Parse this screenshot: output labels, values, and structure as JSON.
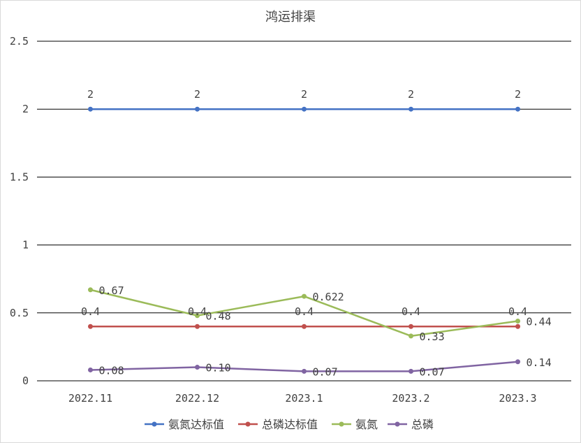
{
  "chart_data": {
    "type": "line",
    "title": "鸿运排渠",
    "categories": [
      "2022.11",
      "2022.12",
      "2023.1",
      "2023.2",
      "2023.3"
    ],
    "ylim": [
      0,
      2.5
    ],
    "yticks": [
      "0",
      "0.5",
      "1",
      "1.5",
      "2",
      "2.5"
    ],
    "ytick_values": [
      0,
      0.5,
      1,
      1.5,
      2,
      2.5
    ],
    "grid": true,
    "legend_position": "bottom",
    "series": [
      {
        "name": "氨氮达标值",
        "color": "#4472C4",
        "values": [
          2,
          2,
          2,
          2,
          2
        ],
        "labels": [
          "2",
          "2",
          "2",
          "2",
          "2"
        ]
      },
      {
        "name": "总磷达标值",
        "color": "#C0504D",
        "values": [
          0.4,
          0.4,
          0.4,
          0.4,
          0.4
        ],
        "labels": [
          "0.4",
          "0.4",
          "0.4",
          "0.4",
          "0.4"
        ]
      },
      {
        "name": "氨氮",
        "color": "#9BBB59",
        "values": [
          0.67,
          0.48,
          0.622,
          0.33,
          0.44
        ],
        "labels": [
          "0.67",
          "0.48",
          "0.622",
          "0.33",
          "0.44"
        ]
      },
      {
        "name": "总磷",
        "color": "#8064A2",
        "values": [
          0.08,
          0.1,
          0.07,
          0.07,
          0.14
        ],
        "labels": [
          "0.08",
          "0.10",
          "0.07",
          "0.07",
          "0.14"
        ]
      }
    ]
  }
}
